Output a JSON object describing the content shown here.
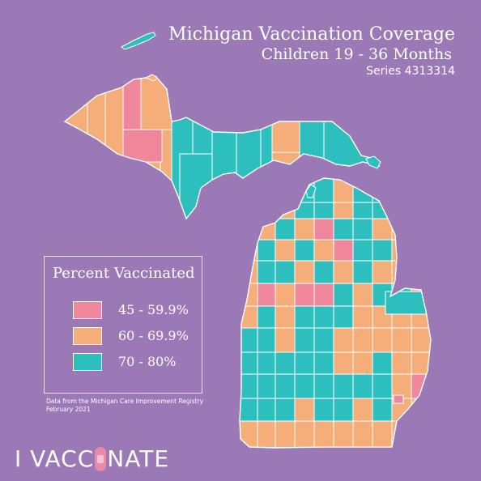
{
  "title": "Michigan Vaccination Coverage",
  "subtitle": "Children 19 - 36 Months",
  "series": "Series 4313314",
  "legend": {
    "title": "Percent Vaccinated",
    "items": [
      {
        "label": "45 - 59.9%",
        "color": "#f0879d"
      },
      {
        "label": "60 - 69.9%",
        "color": "#f5ae79"
      },
      {
        "label": "70 - 80%",
        "color": "#2cbfbd"
      }
    ]
  },
  "source": {
    "line1": "Data from the Michigan Care Improvement Registry",
    "line2": "February 2021"
  },
  "logo": {
    "left": "I VACC",
    "right": "NATE"
  },
  "colors": {
    "background": "#9b79b6",
    "low": "#f0879d",
    "mid": "#f5ae79",
    "high": "#2cbfbd",
    "border": "#ffffff"
  }
}
